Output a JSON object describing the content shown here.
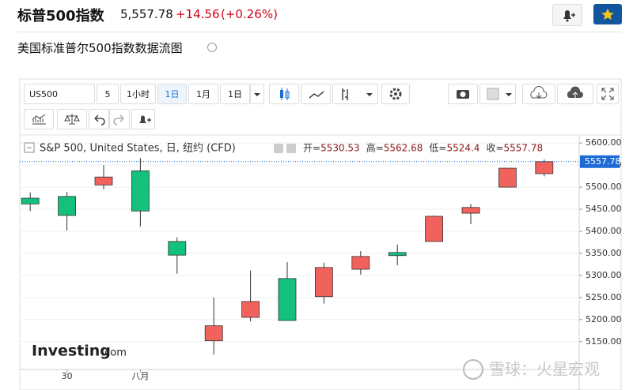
{
  "header": {
    "title": "标普500指数",
    "price": "5,557.78",
    "change": "+14.56",
    "change_pct": "(+0.26%)",
    "subtitle": "美国标准普尔500指数数据流图"
  },
  "toolbar": {
    "symbol": "US500",
    "buttons": [
      "5",
      "1小时",
      "1日",
      "1月",
      "1日"
    ]
  },
  "logo": "Investing",
  "logo_suffix": ".com",
  "watermark": "雪球：火星宏观",
  "chart_data": {
    "type": "candlestick",
    "title": "S&P 500, United States, 日, 纽约 (CFD)",
    "ohlc_labels": [
      "开=",
      "高=",
      "低=",
      "收="
    ],
    "categories": [
      null,
      "30",
      null,
      "八月",
      null,
      null,
      null,
      null,
      null,
      null,
      null,
      null,
      null,
      null,
      null
    ],
    "open": [
      5475,
      5479,
      5505,
      5537,
      5377,
      5152,
      5205,
      5293,
      5252,
      5314,
      5352,
      5377,
      5441,
      5500,
      5530.53
    ],
    "high": [
      5488,
      5489,
      5550,
      5566,
      5386,
      5250,
      5311,
      5330,
      5329,
      5355,
      5370,
      5436,
      5462,
      5543,
      5562.68
    ],
    "low": [
      5446,
      5402,
      5495,
      5411,
      5304,
      5121,
      5196,
      5198,
      5236,
      5302,
      5323,
      5377,
      5416,
      5500,
      5524.4
    ],
    "close": [
      5462,
      5436,
      5523,
      5446,
      5346,
      5186,
      5241,
      5198,
      5318,
      5343,
      5345,
      5434,
      5454,
      5543,
      5557.78
    ],
    "up_color": "#f2625d",
    "down_color": "#13c17d",
    "ylim": [
      5087,
      5611
    ],
    "yticks": [
      {
        "value": 5150,
        "label": "5150.00"
      },
      {
        "value": 5200,
        "label": "5200.00"
      },
      {
        "value": 5250,
        "label": "5250.00"
      },
      {
        "value": 5300,
        "label": "5300.00"
      },
      {
        "value": 5350,
        "label": "5350.00"
      },
      {
        "value": 5400,
        "label": "5400.00"
      },
      {
        "value": 5450,
        "label": "5450.00"
      },
      {
        "value": 5500,
        "label": "5500.00"
      },
      {
        "value": 5550,
        "label": "5550.00"
      },
      {
        "value": 5600,
        "label": "5600.00"
      }
    ],
    "grid": true
  }
}
